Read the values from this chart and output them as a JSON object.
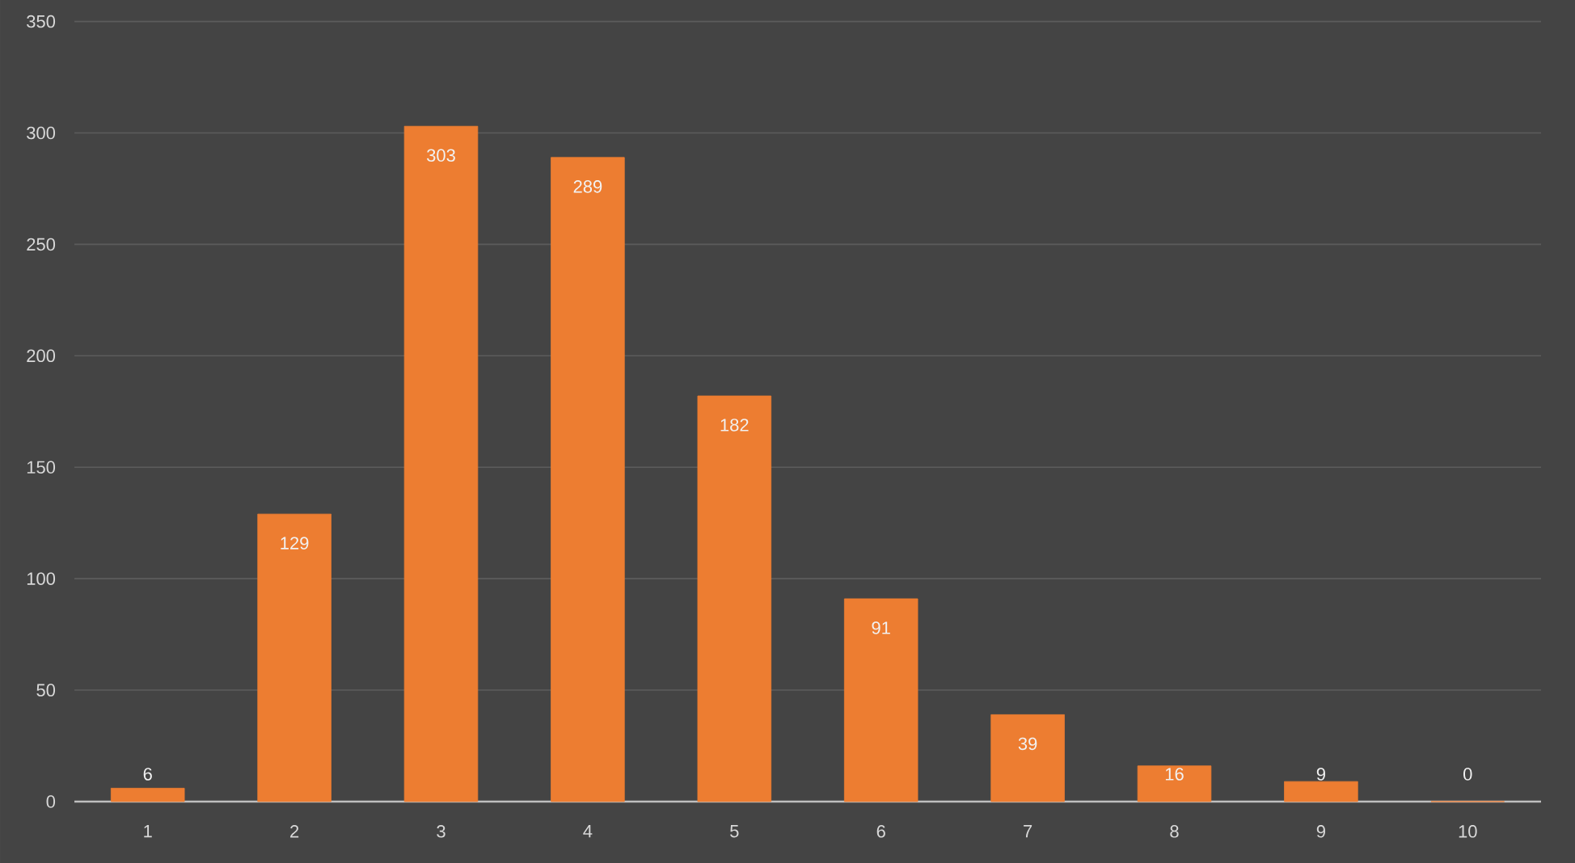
{
  "chart_data": {
    "type": "bar",
    "categories": [
      "1",
      "2",
      "3",
      "4",
      "5",
      "6",
      "7",
      "8",
      "9",
      "10"
    ],
    "values": [
      6,
      129,
      303,
      289,
      182,
      91,
      39,
      16,
      9,
      0
    ],
    "color": "#ed7d31",
    "ylim": [
      0,
      350
    ],
    "yticks": [
      0,
      50,
      100,
      150,
      200,
      250,
      300,
      350
    ],
    "grid": "y",
    "data_labels": true
  }
}
